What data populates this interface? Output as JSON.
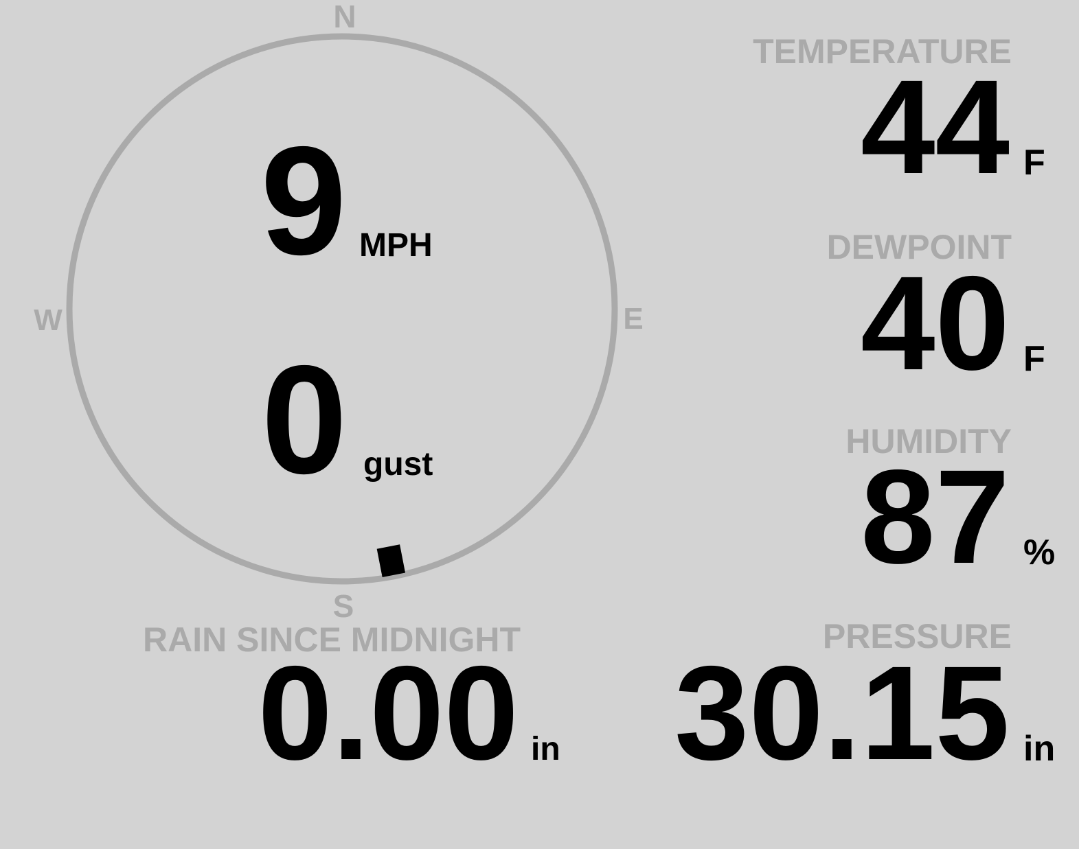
{
  "compass": {
    "north": "N",
    "east": "E",
    "south": "S",
    "west": "W"
  },
  "wind": {
    "speed": "9",
    "speed_unit": "MPH",
    "gust": "0",
    "gust_label": "gust",
    "direction": 169
  },
  "readings": [
    {
      "label": "TEMPERATURE",
      "value": "44",
      "unit": "F"
    },
    {
      "label": "DEWPOINT",
      "value": "40",
      "unit": "F"
    },
    {
      "label": "HUMIDITY",
      "value": "87",
      "unit": "%"
    },
    {
      "label": "PRESSURE",
      "value": "30.15",
      "unit": "in"
    }
  ],
  "rain": {
    "label": "RAIN SINCE MIDNIGHT",
    "value": "0.00",
    "unit": "in"
  }
}
